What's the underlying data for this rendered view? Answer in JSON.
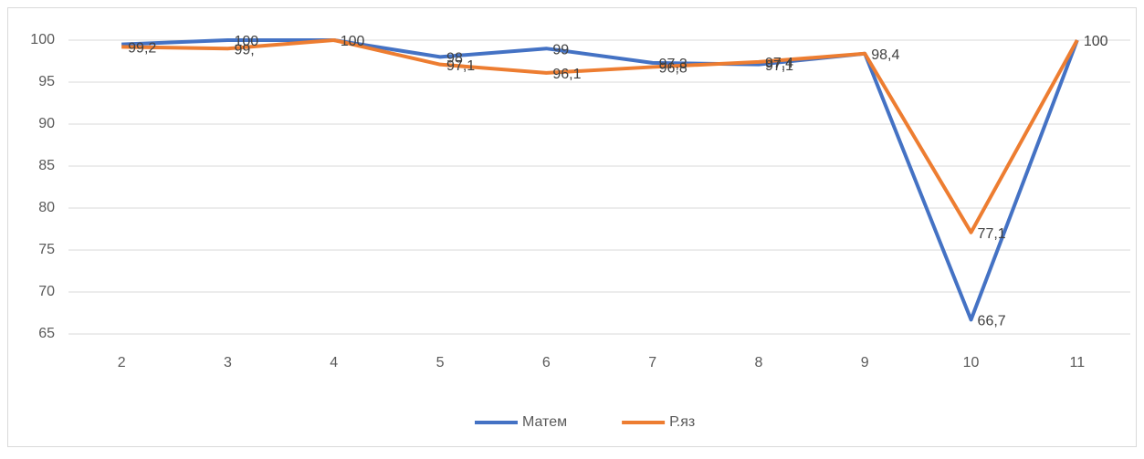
{
  "chart_data": {
    "type": "line",
    "categories": [
      "2",
      "3",
      "4",
      "5",
      "6",
      "7",
      "8",
      "9",
      "10",
      "11"
    ],
    "series": [
      {
        "name": "Матем",
        "color": "#4472c4",
        "values": [
          99.5,
          100,
          100,
          98,
          99,
          97.3,
          97.1,
          98.4,
          66.7,
          100
        ],
        "value_labels": [
          null,
          "100",
          "100",
          "98",
          "99",
          "97,3",
          "97,1",
          "98,4",
          "66,7",
          "100"
        ]
      },
      {
        "name": "Р.яз",
        "color": "#ed7d31",
        "values": [
          99.2,
          99,
          100,
          97.1,
          96.1,
          96.8,
          97.4,
          98.4,
          77.1,
          100
        ],
        "value_labels": [
          "99,2",
          "99,",
          null,
          "97,1",
          "96,1",
          "96,8",
          "97,4",
          null,
          "77,1",
          null
        ]
      }
    ],
    "ylim": [
      65,
      100
    ],
    "yticks": [
      65,
      70,
      75,
      80,
      85,
      90,
      95,
      100
    ],
    "grid": true,
    "legend": "bottom"
  }
}
